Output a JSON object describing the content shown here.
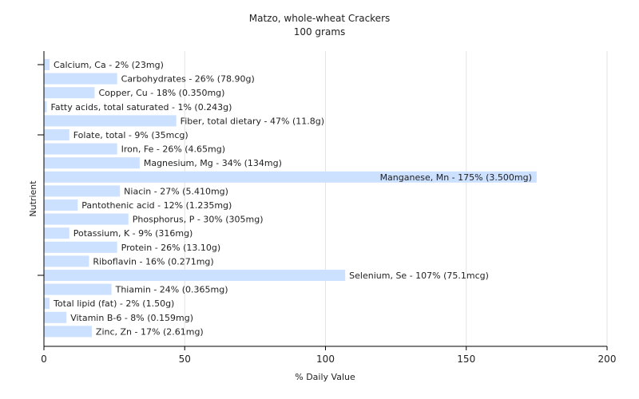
{
  "chart_data": {
    "type": "bar",
    "orientation": "horizontal",
    "title": "Matzo, whole-wheat Crackers",
    "subtitle": "100 grams",
    "xlabel": "% Daily Value",
    "ylabel": "Nutrient",
    "xlim": [
      0,
      200
    ],
    "xticks": [
      0,
      50,
      100,
      150,
      200
    ],
    "grid": true,
    "bar_color": "#cce0ff",
    "categories": [
      "Calcium, Ca",
      "Carbohydrates",
      "Copper, Cu",
      "Fatty acids, total saturated",
      "Fiber, total dietary",
      "Folate, total",
      "Iron, Fe",
      "Magnesium, Mg",
      "Manganese, Mn",
      "Niacin",
      "Pantothenic acid",
      "Phosphorus, P",
      "Potassium, K",
      "Protein",
      "Riboflavin",
      "Selenium, Se",
      "Thiamin",
      "Total lipid (fat)",
      "Vitamin B-6",
      "Zinc, Zn"
    ],
    "values": [
      2,
      26,
      18,
      1,
      47,
      9,
      26,
      34,
      175,
      27,
      12,
      30,
      9,
      26,
      16,
      107,
      24,
      2,
      8,
      17
    ],
    "labels": [
      "Calcium, Ca - 2% (23mg)",
      "Carbohydrates - 26% (78.90g)",
      "Copper, Cu - 18% (0.350mg)",
      "Fatty acids, total saturated - 1% (0.243g)",
      "Fiber, total dietary - 47% (11.8g)",
      "Folate, total - 9% (35mcg)",
      "Iron, Fe - 26% (4.65mg)",
      "Magnesium, Mg - 34% (134mg)",
      "Manganese, Mn - 175% (3.500mg)",
      "Niacin - 27% (5.410mg)",
      "Pantothenic acid - 12% (1.235mg)",
      "Phosphorus, P - 30% (305mg)",
      "Potassium, K - 9% (316mg)",
      "Protein - 26% (13.10g)",
      "Riboflavin - 16% (0.271mg)",
      "Selenium, Se - 107% (75.1mcg)",
      "Thiamin - 24% (0.365mg)",
      "Total lipid (fat) - 2% (1.50g)",
      "Vitamin B-6 - 8% (0.159mg)",
      "Zinc, Zn - 17% (2.61mg)"
    ]
  }
}
